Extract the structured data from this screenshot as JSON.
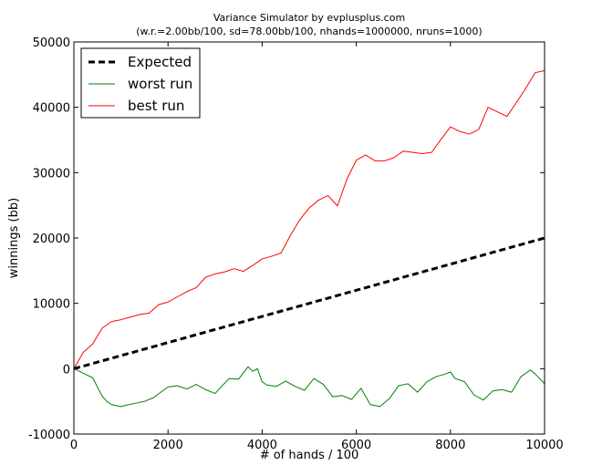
{
  "chart_data": {
    "type": "line",
    "title": "Variance Simulator by evplusplus.com",
    "subtitle": "(w.r.=2.00bb/100, sd=78.00bb/100, nhands=1000000, nruns=1000)",
    "xlabel": "# of hands / 100",
    "ylabel": "winnings (bb)",
    "xlim": [
      0,
      10000
    ],
    "ylim": [
      -10000,
      50000
    ],
    "xticks": [
      "0",
      "2000",
      "4000",
      "6000",
      "8000",
      "10000"
    ],
    "yticks": [
      "-10000",
      "0",
      "10000",
      "20000",
      "30000",
      "40000",
      "50000"
    ],
    "grid": false,
    "legend_position": "top-left",
    "series": [
      {
        "name": "Expected",
        "color": "#000000",
        "style": "dashed",
        "x": [
          0,
          10000
        ],
        "y": [
          0,
          20000
        ]
      },
      {
        "name": "worst run",
        "color": "#008000",
        "style": "solid",
        "x": [
          0,
          200,
          400,
          600,
          700,
          800,
          1000,
          1100,
          1300,
          1500,
          1700,
          1900,
          2000,
          2200,
          2400,
          2600,
          2800,
          3000,
          3100,
          3300,
          3500,
          3700,
          3800,
          3900,
          4000,
          4100,
          4300,
          4500,
          4700,
          4900,
          5100,
          5300,
          5500,
          5700,
          5900,
          6100,
          6300,
          6500,
          6700,
          6900,
          7100,
          7300,
          7500,
          7700,
          7900,
          8000,
          8100,
          8300,
          8500,
          8700,
          8900,
          9100,
          9300,
          9500,
          9700,
          9800,
          10000
        ],
        "y": [
          0,
          -700,
          -1400,
          -4200,
          -5000,
          -5500,
          -5800,
          -5600,
          -5300,
          -5000,
          -4400,
          -3300,
          -2800,
          -2600,
          -3100,
          -2400,
          -3200,
          -3800,
          -3000,
          -1500,
          -1600,
          300,
          -400,
          0,
          -2000,
          -2500,
          -2700,
          -1900,
          -2700,
          -3300,
          -1500,
          -2400,
          -4300,
          -4100,
          -4700,
          -3000,
          -5500,
          -5800,
          -4600,
          -2600,
          -2300,
          -3600,
          -2000,
          -1200,
          -800,
          -500,
          -1500,
          -2000,
          -4000,
          -4800,
          -3400,
          -3200,
          -3600,
          -1200,
          -200,
          -800,
          -2300
        ]
      },
      {
        "name": "best run",
        "color": "#ff0000",
        "style": "solid",
        "x": [
          0,
          200,
          400,
          600,
          800,
          1000,
          1200,
          1400,
          1600,
          1800,
          2000,
          2200,
          2400,
          2600,
          2800,
          3000,
          3200,
          3400,
          3600,
          3800,
          4000,
          4200,
          4400,
          4600,
          4800,
          5000,
          5200,
          5400,
          5600,
          5800,
          6000,
          6200,
          6400,
          6600,
          6800,
          7000,
          7200,
          7400,
          7600,
          7800,
          8000,
          8200,
          8400,
          8600,
          8800,
          9000,
          9200,
          9400,
          9600,
          9800,
          10000
        ],
        "y": [
          0,
          2500,
          3800,
          6200,
          7200,
          7500,
          7900,
          8300,
          8500,
          9800,
          10200,
          11000,
          11800,
          12400,
          14000,
          14500,
          14800,
          15300,
          14900,
          15800,
          16800,
          17200,
          17700,
          20400,
          22800,
          24600,
          25800,
          26500,
          24900,
          29000,
          31900,
          32700,
          31800,
          31800,
          32300,
          33300,
          33100,
          32900,
          33100,
          35100,
          37000,
          36300,
          35900,
          36600,
          40000,
          39300,
          38600,
          40700,
          42900,
          45300,
          45600
        ]
      }
    ]
  }
}
